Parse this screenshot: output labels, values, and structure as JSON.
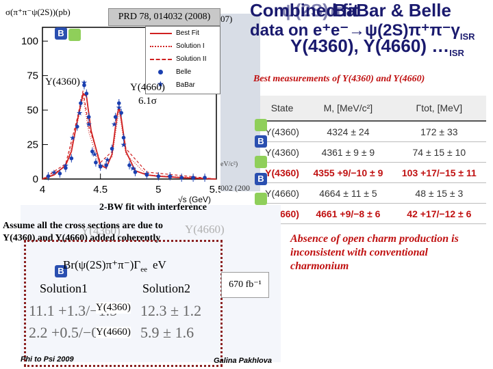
{
  "title": {
    "line1a": "Combined fit",
    "line1b": "ψ(2S)π",
    "line1c": "BaBar & Belle",
    "line2a": "data on e⁺e⁻→ψ(2S)π⁺π⁻γ",
    "line2a_sub": "ISR",
    "line2b": "Y(4360), Y(4660) …",
    "line2b_sub": "ISR",
    "ghost_fragment": "07)"
  },
  "plot": {
    "reference": "PRD 78, 014032 (2008)",
    "ylabel": "σ(π⁺π⁻ψ(2S))(pb)",
    "xlabel": "√s (GeV)",
    "y_ticks": [
      "0",
      "25",
      "50",
      "75",
      "100"
    ],
    "x_ticks": [
      "4",
      "4.5",
      "5",
      "5.5"
    ],
    "legend": [
      "Best Fit",
      "Solution I",
      "Solution II",
      "Belle",
      "BaBar"
    ],
    "ann_4360": "Y(4360)",
    "ann_4660": "Y(4660)",
    "ann_sigma": "6.1σ",
    "bg_fragment": "002 (200",
    "bg_frag2": "eV/c²)"
  },
  "best_measurements": "Best measurements of Y(4360) and Y(4660)",
  "table": {
    "headers": [
      "State",
      "M, [MeV/c²]",
      "Γtot, [MeV]"
    ],
    "rows": [
      {
        "state": "Y(4360)",
        "mass": "4324 ± 24",
        "width": "172 ± 33",
        "highlight": false
      },
      {
        "state": "Y(4360)",
        "mass": "4361 ± 9 ± 9",
        "width": "74 ± 15 ± 10",
        "highlight": false
      },
      {
        "state": "Y(4360)",
        "mass": "4355 +9/−10 ± 9",
        "width": "103 +17/−15 ± 11",
        "highlight": true
      },
      {
        "state": "Y(4660)",
        "mass": "4664 ± 11 ± 5",
        "width": "48 ± 15 ± 3",
        "highlight": false
      },
      {
        "state": "Y(4660)",
        "mass": "4661 +9/−8 ± 6",
        "width": "42 +17/−12 ± 6",
        "highlight": true
      }
    ]
  },
  "lower": {
    "bw_fit": "2-BW fit with interference",
    "assume_l1": "Assume all the cross sections are due to",
    "assume_l2": "Y(4360) and Y(4660) added coherently",
    "ghost_4360": "Y(4360)",
    "ghost_4660": "Y(4660)",
    "formula": "Br(ψ(2S)π⁺π⁻)Γ",
    "formula_sub": "ee",
    "formula_unit": "eV",
    "solution1": "Solution1",
    "solution2": "Solution2",
    "s1_4360": "11.1 +1.3/−1.5",
    "s2_4360": "12.3 ± 1.2",
    "s1_4660": "2.2 +0.5/−0.7",
    "s2_4660": "5.9 ± 1.6",
    "lab_4360": "Y(4360)",
    "lab_4660": "Y(4660)",
    "lumi": "670 fb⁻¹",
    "absence": "Absence of open charm production is inconsistent with conventional charmonium"
  },
  "footer": {
    "left": "Phi to Psi 2009",
    "right": "Galina Pakhlova"
  },
  "colors": {
    "title": "#1a1a6e",
    "highlight": "#c01010",
    "belle_icon": "#8fcf5a",
    "babar_icon": "#2a4fb0"
  },
  "chart_data": {
    "type": "scatter",
    "title": "",
    "xlabel": "√s (GeV)",
    "ylabel": "σ(π⁺π⁻ψ(2S))(pb)",
    "xlim": [
      4.0,
      5.5
    ],
    "ylim": [
      0,
      110
    ],
    "series": [
      {
        "name": "Belle",
        "x": [
          4.05,
          4.15,
          4.2,
          4.25,
          4.3,
          4.33,
          4.36,
          4.38,
          4.4,
          4.43,
          4.46,
          4.5,
          4.55,
          4.6,
          4.63,
          4.66,
          4.68,
          4.7,
          4.75,
          4.8,
          4.9,
          5.0,
          5.1,
          5.2,
          5.3,
          5.4
        ],
        "values": [
          2,
          4,
          8,
          15,
          38,
          55,
          68,
          62,
          45,
          20,
          12,
          9,
          10,
          22,
          45,
          55,
          48,
          30,
          10,
          5,
          3,
          2,
          2,
          1,
          1,
          1
        ]
      },
      {
        "name": "BaBar",
        "x": [
          4.1,
          4.2,
          4.26,
          4.32,
          4.36,
          4.4,
          4.45,
          4.5,
          4.56,
          4.62,
          4.66,
          4.7,
          4.78,
          4.9,
          5.1,
          5.3
        ],
        "values": [
          5,
          10,
          30,
          48,
          70,
          40,
          18,
          10,
          14,
          40,
          52,
          25,
          8,
          4,
          2,
          1
        ]
      },
      {
        "name": "Best Fit",
        "x": [
          4.0,
          4.1,
          4.2,
          4.25,
          4.3,
          4.35,
          4.38,
          4.42,
          4.5,
          4.55,
          4.6,
          4.64,
          4.66,
          4.68,
          4.72,
          4.8,
          4.9,
          5.0,
          5.2,
          5.5
        ],
        "values": [
          0,
          3,
          10,
          20,
          42,
          62,
          60,
          35,
          10,
          8,
          18,
          45,
          52,
          44,
          20,
          6,
          3,
          2,
          1,
          0
        ]
      },
      {
        "name": "Solution I",
        "x": [
          4.0,
          4.2,
          4.3,
          4.35,
          4.4,
          4.5,
          4.6,
          4.66,
          4.72,
          4.9,
          5.5
        ],
        "values": [
          0,
          9,
          40,
          60,
          34,
          8,
          16,
          50,
          18,
          3,
          0
        ]
      },
      {
        "name": "Solution II",
        "x": [
          4.0,
          4.2,
          4.3,
          4.35,
          4.4,
          4.5,
          4.6,
          4.66,
          4.72,
          4.9,
          5.5
        ],
        "values": [
          0,
          11,
          44,
          64,
          38,
          12,
          20,
          54,
          22,
          5,
          0
        ]
      }
    ]
  }
}
